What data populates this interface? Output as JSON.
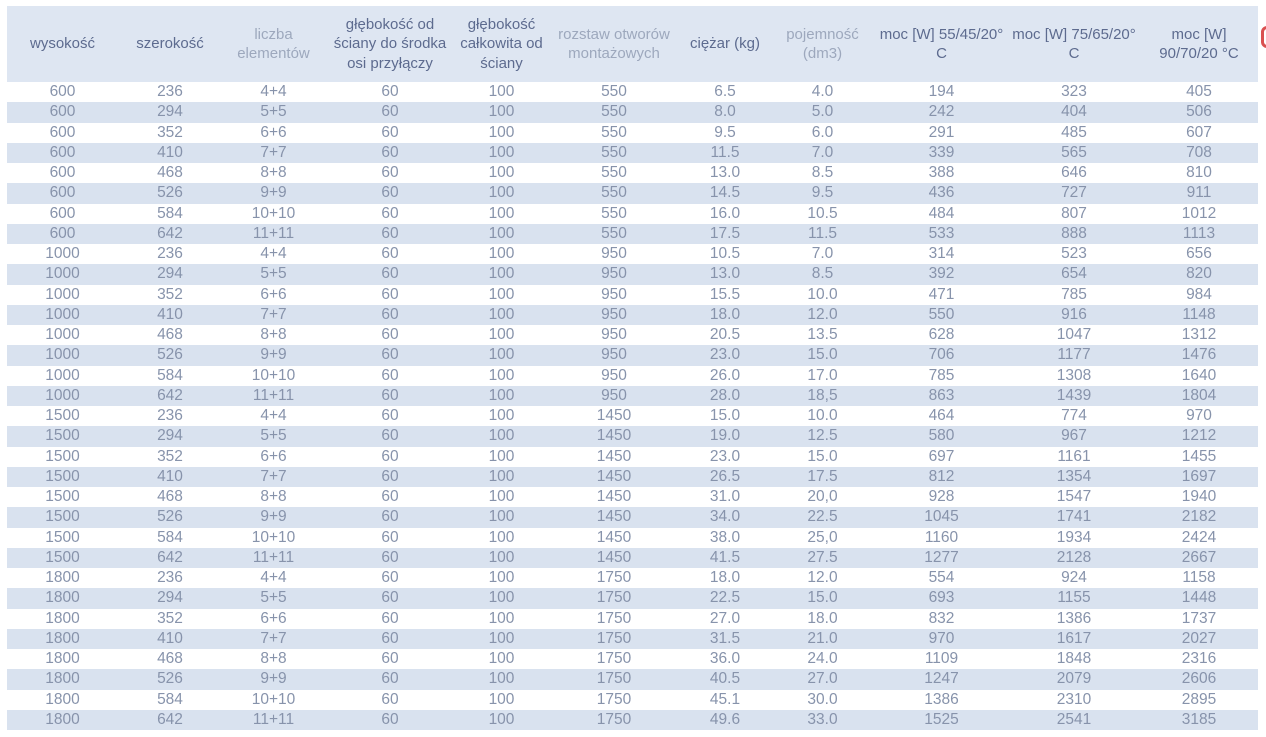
{
  "table": {
    "columns": [
      {
        "label": "wysokość",
        "shade": "dark"
      },
      {
        "label": "szerokość",
        "shade": "dark"
      },
      {
        "label": "liczba elementów",
        "shade": "light"
      },
      {
        "label": "głębokość od ściany do środka osi przyłączy",
        "shade": "dark"
      },
      {
        "label": "głębokość całkowita od ściany",
        "shade": "dark"
      },
      {
        "label": "rozstaw otworów montażowych",
        "shade": "light"
      },
      {
        "label": "ciężar (kg)",
        "shade": "dark"
      },
      {
        "label": "pojemność (dm3)",
        "shade": "light"
      },
      {
        "label": "moc [W] 55/45/20° C",
        "shade": "dark"
      },
      {
        "label": "moc [W] 75/65/20° C",
        "shade": "dark"
      },
      {
        "label": "moc [W] 90/70/20 °C",
        "shade": "dark"
      }
    ],
    "rows": [
      [
        "600",
        "236",
        "4+4",
        "60",
        "100",
        "550",
        "6.5",
        "4.0",
        "194",
        "323",
        "405"
      ],
      [
        "600",
        "294",
        "5+5",
        "60",
        "100",
        "550",
        "8.0",
        "5.0",
        "242",
        "404",
        "506"
      ],
      [
        "600",
        "352",
        "6+6",
        "60",
        "100",
        "550",
        "9.5",
        "6.0",
        "291",
        "485",
        "607"
      ],
      [
        "600",
        "410",
        "7+7",
        "60",
        "100",
        "550",
        "11.5",
        "7.0",
        "339",
        "565",
        "708"
      ],
      [
        "600",
        "468",
        "8+8",
        "60",
        "100",
        "550",
        "13.0",
        "8.5",
        "388",
        "646",
        "810"
      ],
      [
        "600",
        "526",
        "9+9",
        "60",
        "100",
        "550",
        "14.5",
        "9.5",
        "436",
        "727",
        "911"
      ],
      [
        "600",
        "584",
        "10+10",
        "60",
        "100",
        "550",
        "16.0",
        "10.5",
        "484",
        "807",
        "1012"
      ],
      [
        "600",
        "642",
        "11+11",
        "60",
        "100",
        "550",
        "17.5",
        "11.5",
        "533",
        "888",
        "1113"
      ],
      [
        "1000",
        "236",
        "4+4",
        "60",
        "100",
        "950",
        "10.5",
        "7.0",
        "314",
        "523",
        "656"
      ],
      [
        "1000",
        "294",
        "5+5",
        "60",
        "100",
        "950",
        "13.0",
        "8.5",
        "392",
        "654",
        "820"
      ],
      [
        "1000",
        "352",
        "6+6",
        "60",
        "100",
        "950",
        "15.5",
        "10.0",
        "471",
        "785",
        "984"
      ],
      [
        "1000",
        "410",
        "7+7",
        "60",
        "100",
        "950",
        "18.0",
        "12.0",
        "550",
        "916",
        "1148"
      ],
      [
        "1000",
        "468",
        "8+8",
        "60",
        "100",
        "950",
        "20.5",
        "13.5",
        "628",
        "1047",
        "1312"
      ],
      [
        "1000",
        "526",
        "9+9",
        "60",
        "100",
        "950",
        "23.0",
        "15.0",
        "706",
        "1177",
        "1476"
      ],
      [
        "1000",
        "584",
        "10+10",
        "60",
        "100",
        "950",
        "26.0",
        "17.0",
        "785",
        "1308",
        "1640"
      ],
      [
        "1000",
        "642",
        "11+11",
        "60",
        "100",
        "950",
        "28.0",
        "18,5",
        "863",
        "1439",
        "1804"
      ],
      [
        "1500",
        "236",
        "4+4",
        "60",
        "100",
        "1450",
        "15.0",
        "10.0",
        "464",
        "774",
        "970"
      ],
      [
        "1500",
        "294",
        "5+5",
        "60",
        "100",
        "1450",
        "19.0",
        "12.5",
        "580",
        "967",
        "1212"
      ],
      [
        "1500",
        "352",
        "6+6",
        "60",
        "100",
        "1450",
        "23.0",
        "15.0",
        "697",
        "1161",
        "1455"
      ],
      [
        "1500",
        "410",
        "7+7",
        "60",
        "100",
        "1450",
        "26.5",
        "17.5",
        "812",
        "1354",
        "1697"
      ],
      [
        "1500",
        "468",
        "8+8",
        "60",
        "100",
        "1450",
        "31.0",
        "20,0",
        "928",
        "1547",
        "1940"
      ],
      [
        "1500",
        "526",
        "9+9",
        "60",
        "100",
        "1450",
        "34.0",
        "22.5",
        "1045",
        "1741",
        "2182"
      ],
      [
        "1500",
        "584",
        "10+10",
        "60",
        "100",
        "1450",
        "38.0",
        "25,0",
        "1160",
        "1934",
        "2424"
      ],
      [
        "1500",
        "642",
        "11+11",
        "60",
        "100",
        "1450",
        "41.5",
        "27.5",
        "1277",
        "2128",
        "2667"
      ],
      [
        "1800",
        "236",
        "4+4",
        "60",
        "100",
        "1750",
        "18.0",
        "12.0",
        "554",
        "924",
        "1158"
      ],
      [
        "1800",
        "294",
        "5+5",
        "60",
        "100",
        "1750",
        "22.5",
        "15.0",
        "693",
        "1155",
        "1448"
      ],
      [
        "1800",
        "352",
        "6+6",
        "60",
        "100",
        "1750",
        "27.0",
        "18.0",
        "832",
        "1386",
        "1737"
      ],
      [
        "1800",
        "410",
        "7+7",
        "60",
        "100",
        "1750",
        "31.5",
        "21.0",
        "970",
        "1617",
        "2027"
      ],
      [
        "1800",
        "468",
        "8+8",
        "60",
        "100",
        "1750",
        "36.0",
        "24.0",
        "1109",
        "1848",
        "2316"
      ],
      [
        "1800",
        "526",
        "9+9",
        "60",
        "100",
        "1750",
        "40.5",
        "27.0",
        "1247",
        "2079",
        "2606"
      ],
      [
        "1800",
        "584",
        "10+10",
        "60",
        "100",
        "1750",
        "45.1",
        "30.0",
        "1386",
        "2310",
        "2895"
      ],
      [
        "1800",
        "642",
        "11+11",
        "60",
        "100",
        "1750",
        "49.6",
        "33.0",
        "1525",
        "2541",
        "3185"
      ]
    ]
  },
  "icons": {
    "cutoff_glyph": "red-cutoff-fragment"
  },
  "colors": {
    "header_bg": "#dee6f2",
    "stripe_bg": "#d9e2ef",
    "text_dark": "#5d6b8f",
    "text_light": "#9da8bd",
    "text_data": "#8793ab",
    "accent_red": "#d95050"
  }
}
